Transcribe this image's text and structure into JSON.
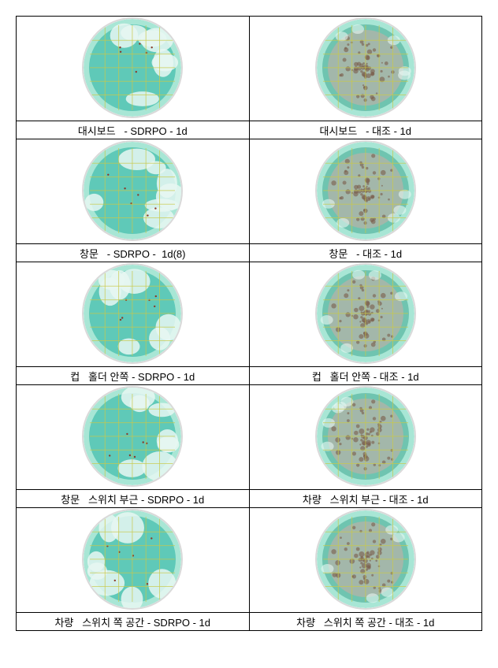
{
  "dish_colors": {
    "left_base": "#5fc9b8",
    "left_edge": "#a8e6d5",
    "left_highlight": "#e8f7f2",
    "right_base": "#6fc4b0",
    "right_edge": "#a8e6d5",
    "right_cloud": "#b9b2a8",
    "right_spots": "#7a5c4a",
    "grid": "#c9c94a"
  },
  "rows": [
    {
      "left_label": "대시보드   - SDRPO - 1d",
      "right_label": "대시보드   - 대조 - 1d"
    },
    {
      "left_label": "창문   - SDRPO -  1d(8)",
      "right_label": "창문   - 대조 - 1d"
    },
    {
      "left_label": "컵   홀더 안쪽 - SDRPO - 1d",
      "right_label": "컵   홀더 안쪽 - 대조 - 1d"
    },
    {
      "left_label": "창문   스위치 부근 - SDRPO - 1d",
      "right_label": "차량   스위치 부근 - 대조 - 1d"
    },
    {
      "left_label": "차량   스위치 쪽 공간 - SDRPO - 1d",
      "right_label": "차량   스위치 쪽 공간 - 대조 - 1d"
    }
  ],
  "table_style": {
    "border_color": "#000000",
    "font_size": 13
  }
}
